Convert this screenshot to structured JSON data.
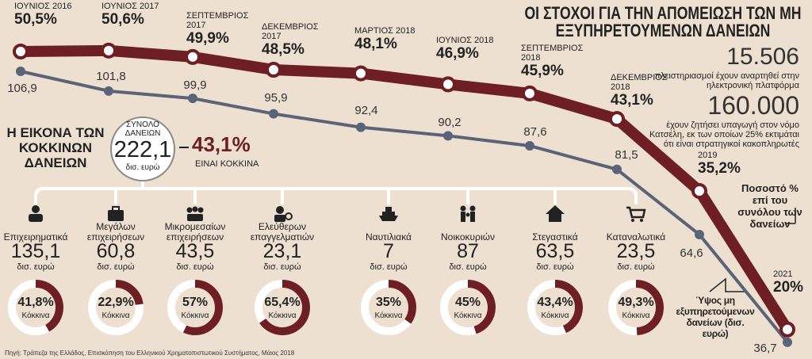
{
  "chart_data": {
    "type": "line",
    "title": "ΟΙ ΣΤΟΧΟΙ ΓΙΑ ΤΗΝ ΑΠΟΜΕΙΩΣΗ ΤΩΝ ΜΗ ΕΞΥΠΗΡΕΤΟΥΜΕΝΩΝ ΔΑΝΕΙΩΝ",
    "categories": [
      "ΙΟΥΝΙΟΣ 2016",
      "ΙΟΥΝΙΟΣ 2017",
      "ΣΕΠΤΕΜΒΡΙΟΣ 2017",
      "ΔΕΚΕΜΒΡΙΟΣ 2017",
      "ΜΑΡΤΙΟΣ 2018",
      "ΙΟΥΝΙΟΣ 2018",
      "ΣΕΠΤΕΜΒΡΙΟΣ 2018",
      "ΔΕΚΕΜΒΡΙΟΣ 2018",
      "2019",
      "2021"
    ],
    "series": [
      {
        "name": "Ποσοστό % επί του συνόλου των δανείων",
        "color": "#6e1f24",
        "values": [
          50.5,
          50.6,
          49.9,
          48.5,
          48.1,
          46.9,
          45.9,
          43.1,
          35.2,
          20
        ],
        "value_labels": [
          "50,5%",
          "50,6%",
          "49,9%",
          "48,5%",
          "48,1%",
          "46,9%",
          "45,9%",
          "43,1%",
          "35,2%",
          "20%"
        ]
      },
      {
        "name": "Ύψος μη εξυπηρετούμενων δανείων (δισ. ευρώ)",
        "color": "#5b6378",
        "values": [
          106.9,
          101.8,
          99.9,
          95.9,
          92.4,
          90.2,
          87.6,
          81.5,
          64.6,
          36.7
        ],
        "value_labels": [
          "106,9",
          "101,8",
          "99,9",
          "95,9",
          "92,4",
          "90,2",
          "87,6",
          "81,5",
          "64,6",
          "36,7"
        ]
      }
    ]
  },
  "stats": [
    {
      "value": "15.506",
      "text": "πλειστηριασμοί έχουν αναρτηθεί στην ηλεκτρονική πλατφόρμα"
    },
    {
      "value": "160.000",
      "text": "έχουν ζητήσει υπαγωγή στον νόμο Κατσέλη, εκ των οποίων 25% εκτιμάται ότι είναι στρατηγικοί κακοπληρωτές"
    }
  ],
  "breakdown": {
    "title": "Η ΕΙΚΟΝΑ ΤΩΝ ΚΟΚΚΙΝΩΝ ΔΑΝΕΙΩΝ",
    "total_label": "ΣΥΝΟΛΟ ΔΑΝΕΙΩΝ",
    "total": "222,1",
    "unit": "δισ. ευρώ",
    "red_share": "43,1%",
    "red_share_text": "ΕΙΝΑΙ ΚΟΚΚΙΝΑ",
    "red_word": "Κόκκινα",
    "segments": [
      {
        "name": "Επιχειρηματικά",
        "amount": "135,1",
        "red_pct": 41.8,
        "red_label": "41,8%"
      },
      {
        "name": "Μεγάλων επιχειρήσεων",
        "amount": "60,8",
        "red_pct": 22.9,
        "red_label": "22,9%"
      },
      {
        "name": "Μικρομεσαίων επιχειρήσεων",
        "amount": "43,5",
        "red_pct": 57,
        "red_label": "57%"
      },
      {
        "name": "Ελεύθερων επαγγελματιών",
        "amount": "23,1",
        "red_pct": 65.4,
        "red_label": "65,4%"
      },
      {
        "name": "Ναυτιλιακά",
        "amount": "7",
        "red_pct": 35,
        "red_label": "35%"
      },
      {
        "name": "Νοικοκυριών",
        "amount": "87",
        "red_pct": 45,
        "red_label": "45%"
      },
      {
        "name": "Στεγαστικά",
        "amount": "63,5",
        "red_pct": 43.4,
        "red_label": "43,4%"
      },
      {
        "name": "Καταναλωτικά",
        "amount": "23,5",
        "red_pct": 49.3,
        "red_label": "49,3%"
      }
    ]
  },
  "source": "Πηγή: Τράπεζα της Ελλάδος, Επισκόπηση του Ελληνικού Χρηματοπιστωτικού Συστήματος, Μάιος 2018"
}
